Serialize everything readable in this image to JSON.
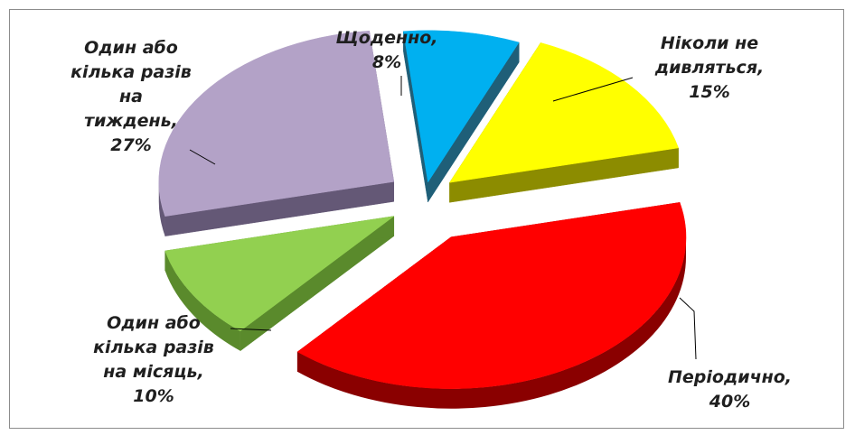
{
  "chart_data": {
    "type": "pie",
    "title": "",
    "slices": [
      {
        "label": "Щоденно,\n8%",
        "category": "Щоденно",
        "value": 8,
        "color": "#00b0f0",
        "side": "#1f5f78",
        "exploded": true
      },
      {
        "label": "Ніколи не\nдивляться,\n15%",
        "category": "Ніколи не дивляться",
        "value": 15,
        "color": "#ffff00",
        "side": "#8c8c00",
        "exploded": true
      },
      {
        "label": "Періодично,\n40%",
        "category": "Періодично",
        "value": 40,
        "color": "#ff0000",
        "side": "#8a0000",
        "exploded": true
      },
      {
        "label": "Один або\nкілька разів\nна місяць,\n10%",
        "category": "Один або кілька разів на місяць",
        "value": 10,
        "color": "#92d050",
        "side": "#5a8a2c",
        "exploded": true
      },
      {
        "label": "Один або\nкілька разів\nна\nтиждень,\n27%",
        "category": "Один або кілька разів на тиждень",
        "value": 27,
        "color": "#b3a2c7",
        "side": "#645876",
        "exploded": true
      }
    ],
    "legend": "none",
    "data_labels": "category and percent, outside with leader lines"
  }
}
